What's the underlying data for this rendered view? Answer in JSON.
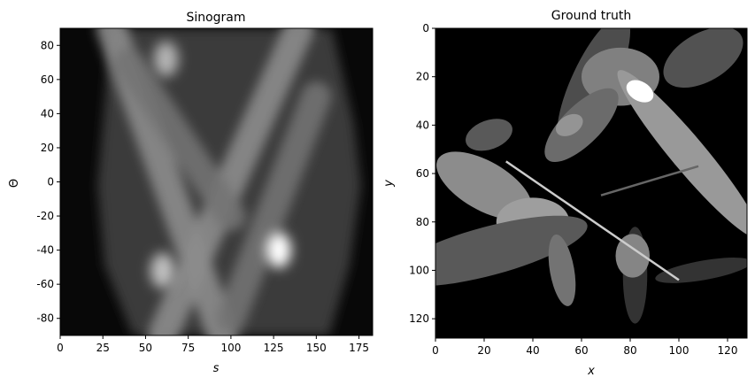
{
  "chart_data": [
    {
      "type": "heatmap",
      "title": "Sinogram",
      "xlabel": "s",
      "ylabel": "Θ",
      "xlim": [
        0,
        183
      ],
      "ylim": [
        -90,
        90
      ],
      "x_ticks": [
        0,
        25,
        50,
        75,
        100,
        125,
        150,
        175
      ],
      "y_ticks": [
        80,
        60,
        40,
        20,
        0,
        -20,
        -40,
        -60,
        -80
      ],
      "colormap": "gray",
      "bright_bands": [
        {
          "from": [
            30,
            90
          ],
          "to": [
            95,
            -90
          ],
          "intensity": 0.55
        },
        {
          "from": [
            140,
            90
          ],
          "to": [
            60,
            -90
          ],
          "intensity": 0.55
        },
        {
          "from": [
            40,
            70
          ],
          "to": [
            100,
            -20
          ],
          "intensity": 0.45
        },
        {
          "from": [
            150,
            50
          ],
          "to": [
            100,
            -80
          ],
          "intensity": 0.45
        }
      ],
      "bright_spots": [
        {
          "s": 128,
          "theta": -40,
          "intensity": 1.0
        },
        {
          "s": 60,
          "theta": -52,
          "intensity": 0.75
        },
        {
          "s": 62,
          "theta": 72,
          "intensity": 0.7
        }
      ]
    },
    {
      "type": "heatmap",
      "title": "Ground truth",
      "xlabel": "x",
      "ylabel": "y",
      "xlim": [
        0,
        128
      ],
      "ylim": [
        128,
        0
      ],
      "x_ticks": [
        0,
        20,
        40,
        60,
        80,
        100,
        120
      ],
      "y_ticks": [
        0,
        20,
        40,
        60,
        80,
        100,
        120
      ],
      "colormap": "gray",
      "ellipses": [
        {
          "cx": 110,
          "cy": 12,
          "rx": 18,
          "ry": 10,
          "angle": -30,
          "gray": 0.32
        },
        {
          "cx": 65,
          "cy": 22,
          "rx": 9,
          "ry": 30,
          "angle": 25,
          "gray": 0.3
        },
        {
          "cx": 76,
          "cy": 20,
          "rx": 16,
          "ry": 12,
          "angle": 0,
          "gray": 0.5
        },
        {
          "cx": 60,
          "cy": 40,
          "rx": 8,
          "ry": 20,
          "angle": 45,
          "gray": 0.42
        },
        {
          "cx": 104,
          "cy": 52,
          "rx": 7,
          "ry": 45,
          "angle": -40,
          "gray": 0.6
        },
        {
          "cx": 20,
          "cy": 65,
          "rx": 10,
          "ry": 22,
          "angle": -60,
          "gray": 0.55
        },
        {
          "cx": 40,
          "cy": 80,
          "rx": 15,
          "ry": 10,
          "angle": 0,
          "gray": 0.62
        },
        {
          "cx": 22,
          "cy": 92,
          "rx": 10,
          "ry": 42,
          "angle": 75,
          "gray": 0.35
        },
        {
          "cx": 52,
          "cy": 100,
          "rx": 5,
          "ry": 15,
          "angle": -10,
          "gray": 0.45
        },
        {
          "cx": 82,
          "cy": 102,
          "rx": 5,
          "ry": 20,
          "angle": 0,
          "gray": 0.2
        },
        {
          "cx": 81,
          "cy": 94,
          "rx": 7,
          "ry": 9,
          "angle": 0,
          "gray": 0.52
        },
        {
          "cx": 22,
          "cy": 44,
          "rx": 10,
          "ry": 6,
          "angle": -20,
          "gray": 0.35
        },
        {
          "cx": 110,
          "cy": 100,
          "rx": 20,
          "ry": 4,
          "angle": -10,
          "gray": 0.2
        },
        {
          "cx": 84,
          "cy": 26,
          "rx": 6,
          "ry": 4,
          "angle": 30,
          "gray": 1.0
        },
        {
          "cx": 55,
          "cy": 40,
          "rx": 6,
          "ry": 4,
          "angle": -30,
          "gray": 0.58
        }
      ],
      "lines": [
        {
          "from": [
            29,
            55
          ],
          "to": [
            100,
            104
          ],
          "gray": 0.8
        },
        {
          "from": [
            68,
            69
          ],
          "to": [
            108,
            57
          ],
          "gray": 0.4
        }
      ]
    }
  ]
}
